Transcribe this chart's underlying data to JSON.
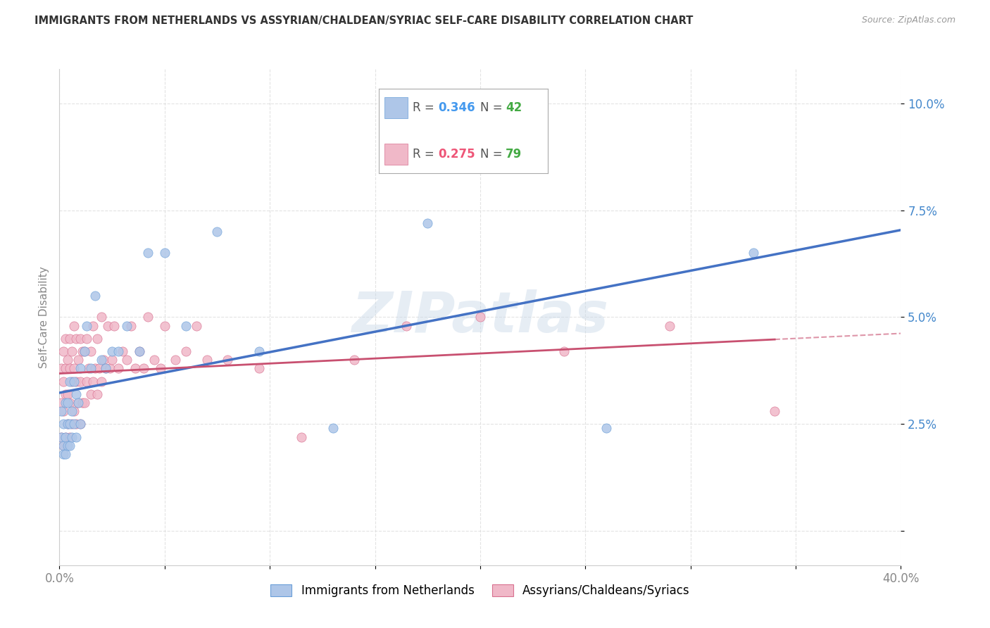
{
  "title": "IMMIGRANTS FROM NETHERLANDS VS ASSYRIAN/CHALDEAN/SYRIAC SELF-CARE DISABILITY CORRELATION CHART",
  "source": "Source: ZipAtlas.com",
  "ylabel": "Self-Care Disability",
  "xlim": [
    0.0,
    0.4
  ],
  "ylim": [
    -0.008,
    0.108
  ],
  "xticks": [
    0.0,
    0.05,
    0.1,
    0.15,
    0.2,
    0.25,
    0.3,
    0.35,
    0.4
  ],
  "xtick_labels": [
    "0.0%",
    "",
    "",
    "",
    "",
    "",
    "",
    "",
    "40.0%"
  ],
  "yticks": [
    0.0,
    0.025,
    0.05,
    0.075,
    0.1
  ],
  "ytick_labels": [
    "",
    "2.5%",
    "5.0%",
    "7.5%",
    "10.0%"
  ],
  "grid_color": "#e0e0e0",
  "background_color": "#ffffff",
  "series1_label": "Immigrants from Netherlands",
  "series1_color": "#aec6e8",
  "series1_edge_color": "#6a9fd8",
  "series1_line_color": "#4472c4",
  "series1_R": 0.346,
  "series1_N": 42,
  "series2_label": "Assyrians/Chaldeans/Syriacs",
  "series2_color": "#f0b8c8",
  "series2_edge_color": "#d87090",
  "series2_line_color": "#c85070",
  "series2_R": 0.275,
  "series2_N": 79,
  "watermark": "ZIPatlas",
  "legend_R1_color": "#4499ee",
  "legend_N1_color": "#44aa44",
  "legend_R2_color": "#ee5577",
  "legend_N2_color": "#44aa44",
  "title_color": "#333333",
  "axis_color": "#888888",
  "ytick_color": "#4488cc",
  "series1_x": [
    0.001,
    0.001,
    0.002,
    0.002,
    0.002,
    0.003,
    0.003,
    0.003,
    0.004,
    0.004,
    0.004,
    0.005,
    0.005,
    0.005,
    0.006,
    0.006,
    0.007,
    0.007,
    0.008,
    0.008,
    0.009,
    0.01,
    0.01,
    0.012,
    0.013,
    0.015,
    0.017,
    0.02,
    0.022,
    0.025,
    0.028,
    0.032,
    0.038,
    0.042,
    0.05,
    0.06,
    0.075,
    0.095,
    0.13,
    0.175,
    0.26,
    0.33
  ],
  "series1_y": [
    0.022,
    0.028,
    0.02,
    0.025,
    0.018,
    0.022,
    0.03,
    0.018,
    0.025,
    0.02,
    0.03,
    0.02,
    0.025,
    0.035,
    0.022,
    0.028,
    0.025,
    0.035,
    0.022,
    0.032,
    0.03,
    0.025,
    0.038,
    0.042,
    0.048,
    0.038,
    0.055,
    0.04,
    0.038,
    0.042,
    0.042,
    0.048,
    0.042,
    0.065,
    0.065,
    0.048,
    0.07,
    0.042,
    0.024,
    0.072,
    0.024,
    0.065
  ],
  "series2_x": [
    0.001,
    0.001,
    0.001,
    0.002,
    0.002,
    0.002,
    0.002,
    0.003,
    0.003,
    0.003,
    0.003,
    0.004,
    0.004,
    0.004,
    0.005,
    0.005,
    0.005,
    0.005,
    0.006,
    0.006,
    0.006,
    0.007,
    0.007,
    0.007,
    0.008,
    0.008,
    0.008,
    0.009,
    0.009,
    0.01,
    0.01,
    0.01,
    0.011,
    0.011,
    0.012,
    0.012,
    0.013,
    0.013,
    0.014,
    0.015,
    0.015,
    0.016,
    0.016,
    0.017,
    0.018,
    0.018,
    0.019,
    0.02,
    0.02,
    0.021,
    0.022,
    0.023,
    0.024,
    0.025,
    0.026,
    0.028,
    0.03,
    0.032,
    0.034,
    0.036,
    0.038,
    0.04,
    0.042,
    0.045,
    0.048,
    0.05,
    0.055,
    0.06,
    0.065,
    0.07,
    0.08,
    0.095,
    0.115,
    0.14,
    0.165,
    0.2,
    0.24,
    0.29,
    0.34
  ],
  "series2_y": [
    0.022,
    0.03,
    0.038,
    0.02,
    0.028,
    0.035,
    0.042,
    0.022,
    0.032,
    0.038,
    0.045,
    0.025,
    0.032,
    0.04,
    0.022,
    0.03,
    0.038,
    0.045,
    0.025,
    0.035,
    0.042,
    0.028,
    0.038,
    0.048,
    0.025,
    0.035,
    0.045,
    0.03,
    0.04,
    0.025,
    0.035,
    0.045,
    0.03,
    0.042,
    0.03,
    0.042,
    0.035,
    0.045,
    0.038,
    0.032,
    0.042,
    0.035,
    0.048,
    0.038,
    0.032,
    0.045,
    0.038,
    0.035,
    0.05,
    0.04,
    0.038,
    0.048,
    0.038,
    0.04,
    0.048,
    0.038,
    0.042,
    0.04,
    0.048,
    0.038,
    0.042,
    0.038,
    0.05,
    0.04,
    0.038,
    0.048,
    0.04,
    0.042,
    0.048,
    0.04,
    0.04,
    0.038,
    0.022,
    0.04,
    0.048,
    0.05,
    0.042,
    0.048,
    0.028
  ]
}
